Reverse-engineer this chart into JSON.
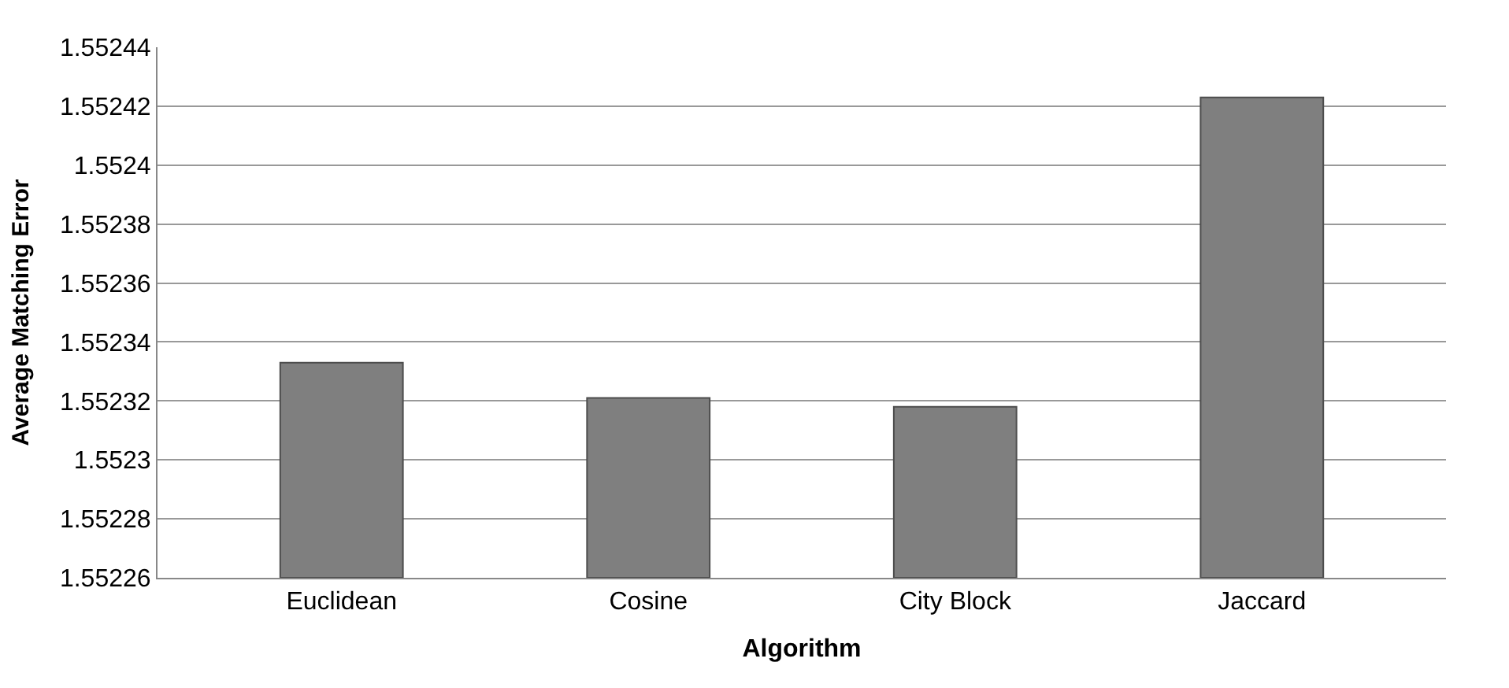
{
  "chart_data": {
    "type": "bar",
    "xlabel": "Algorithm",
    "ylabel": "Average Matching Error",
    "categories": [
      "Euclidean",
      "Cosine",
      "City Block",
      "Jaccard"
    ],
    "values": [
      1.552333,
      1.552321,
      1.552318,
      1.552423
    ],
    "color": "#7f7f7f",
    "ylim": [
      1.55226,
      1.55244
    ],
    "yticks": [
      1.55226,
      1.55228,
      1.5523,
      1.55232,
      1.55234,
      1.55236,
      1.55238,
      1.5524,
      1.55242,
      1.55244
    ],
    "grid": "y"
  }
}
